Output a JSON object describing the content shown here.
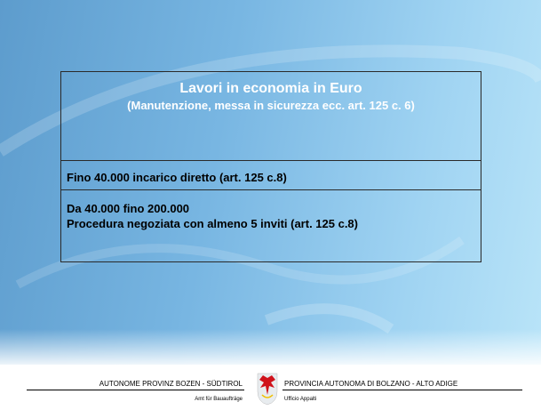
{
  "table": {
    "title": "Lavori in economia in  Euro",
    "subtitle": "(Manutenzione, messa in sicurezza ecc. art. 125 c. 6)",
    "rows": [
      [
        "Fino 40.000 incarico diretto (art. 125 c.8)"
      ],
      [
        "Da 40.000 fino 200.000",
        "Procedura negoziata con almeno 5 inviti (art. 125 c.8)"
      ]
    ]
  },
  "footer": {
    "left": [
      "AUTONOME PROVINZ BOZEN - SÜDTIROL",
      "Amt für Bauaufträge"
    ],
    "right": [
      "PROVINCIA AUTONOMA DI BOLZANO - ALTO ADIGE",
      "Ufficio Appalti"
    ]
  }
}
